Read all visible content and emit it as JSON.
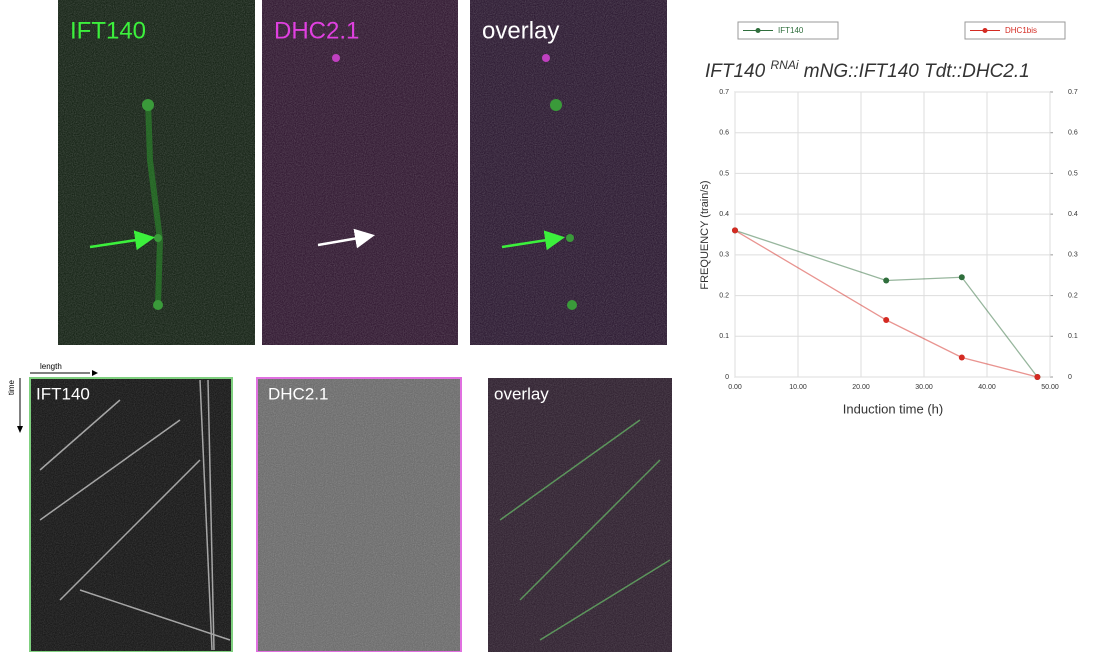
{
  "panels": {
    "top": [
      "IFT140",
      "DHC2.1",
      "overlay"
    ],
    "kymo": [
      "IFT140",
      "DHC2.1",
      "overlay"
    ],
    "length_label": "length",
    "time_label": "time"
  },
  "chart_data": {
    "type": "line",
    "title": "IFT140",
    "title_superscript": "RNAi",
    "title_rest": "mNG::IFT140 Tdt::DHC2.1",
    "x_label": "Induction time (h)",
    "y_label": "FREQUENCY (train/s)",
    "series": [
      {
        "name": "IFT140",
        "color": "#2f6e3c",
        "x": [
          0,
          24,
          36,
          48
        ],
        "values": [
          0.36,
          0.237,
          0.245,
          0
        ]
      },
      {
        "name": "DHC1bis",
        "color": "#d42a22",
        "x": [
          0,
          24,
          36,
          48
        ],
        "values": [
          0.36,
          0.14,
          0.048,
          0
        ]
      }
    ],
    "xlim": [
      0,
      50
    ],
    "xticks": [
      {
        "value": 0,
        "label": "0.00"
      },
      {
        "value": 10,
        "label": "10.00"
      },
      {
        "value": 20,
        "label": "20.00"
      },
      {
        "value": 30,
        "label": "30.00"
      },
      {
        "value": 40,
        "label": "40.00"
      },
      {
        "value": 50,
        "label": "50.00"
      }
    ],
    "ylim": [
      0,
      0.7
    ],
    "yticks": [
      0,
      0.1,
      0.2,
      0.3,
      0.4,
      0.5,
      0.6,
      0.7
    ],
    "y2lim": [
      0,
      0.7
    ],
    "y2ticks": [
      0,
      0.1,
      0.2,
      0.3,
      0.4,
      0.5,
      0.6,
      0.7
    ],
    "grid": true
  }
}
